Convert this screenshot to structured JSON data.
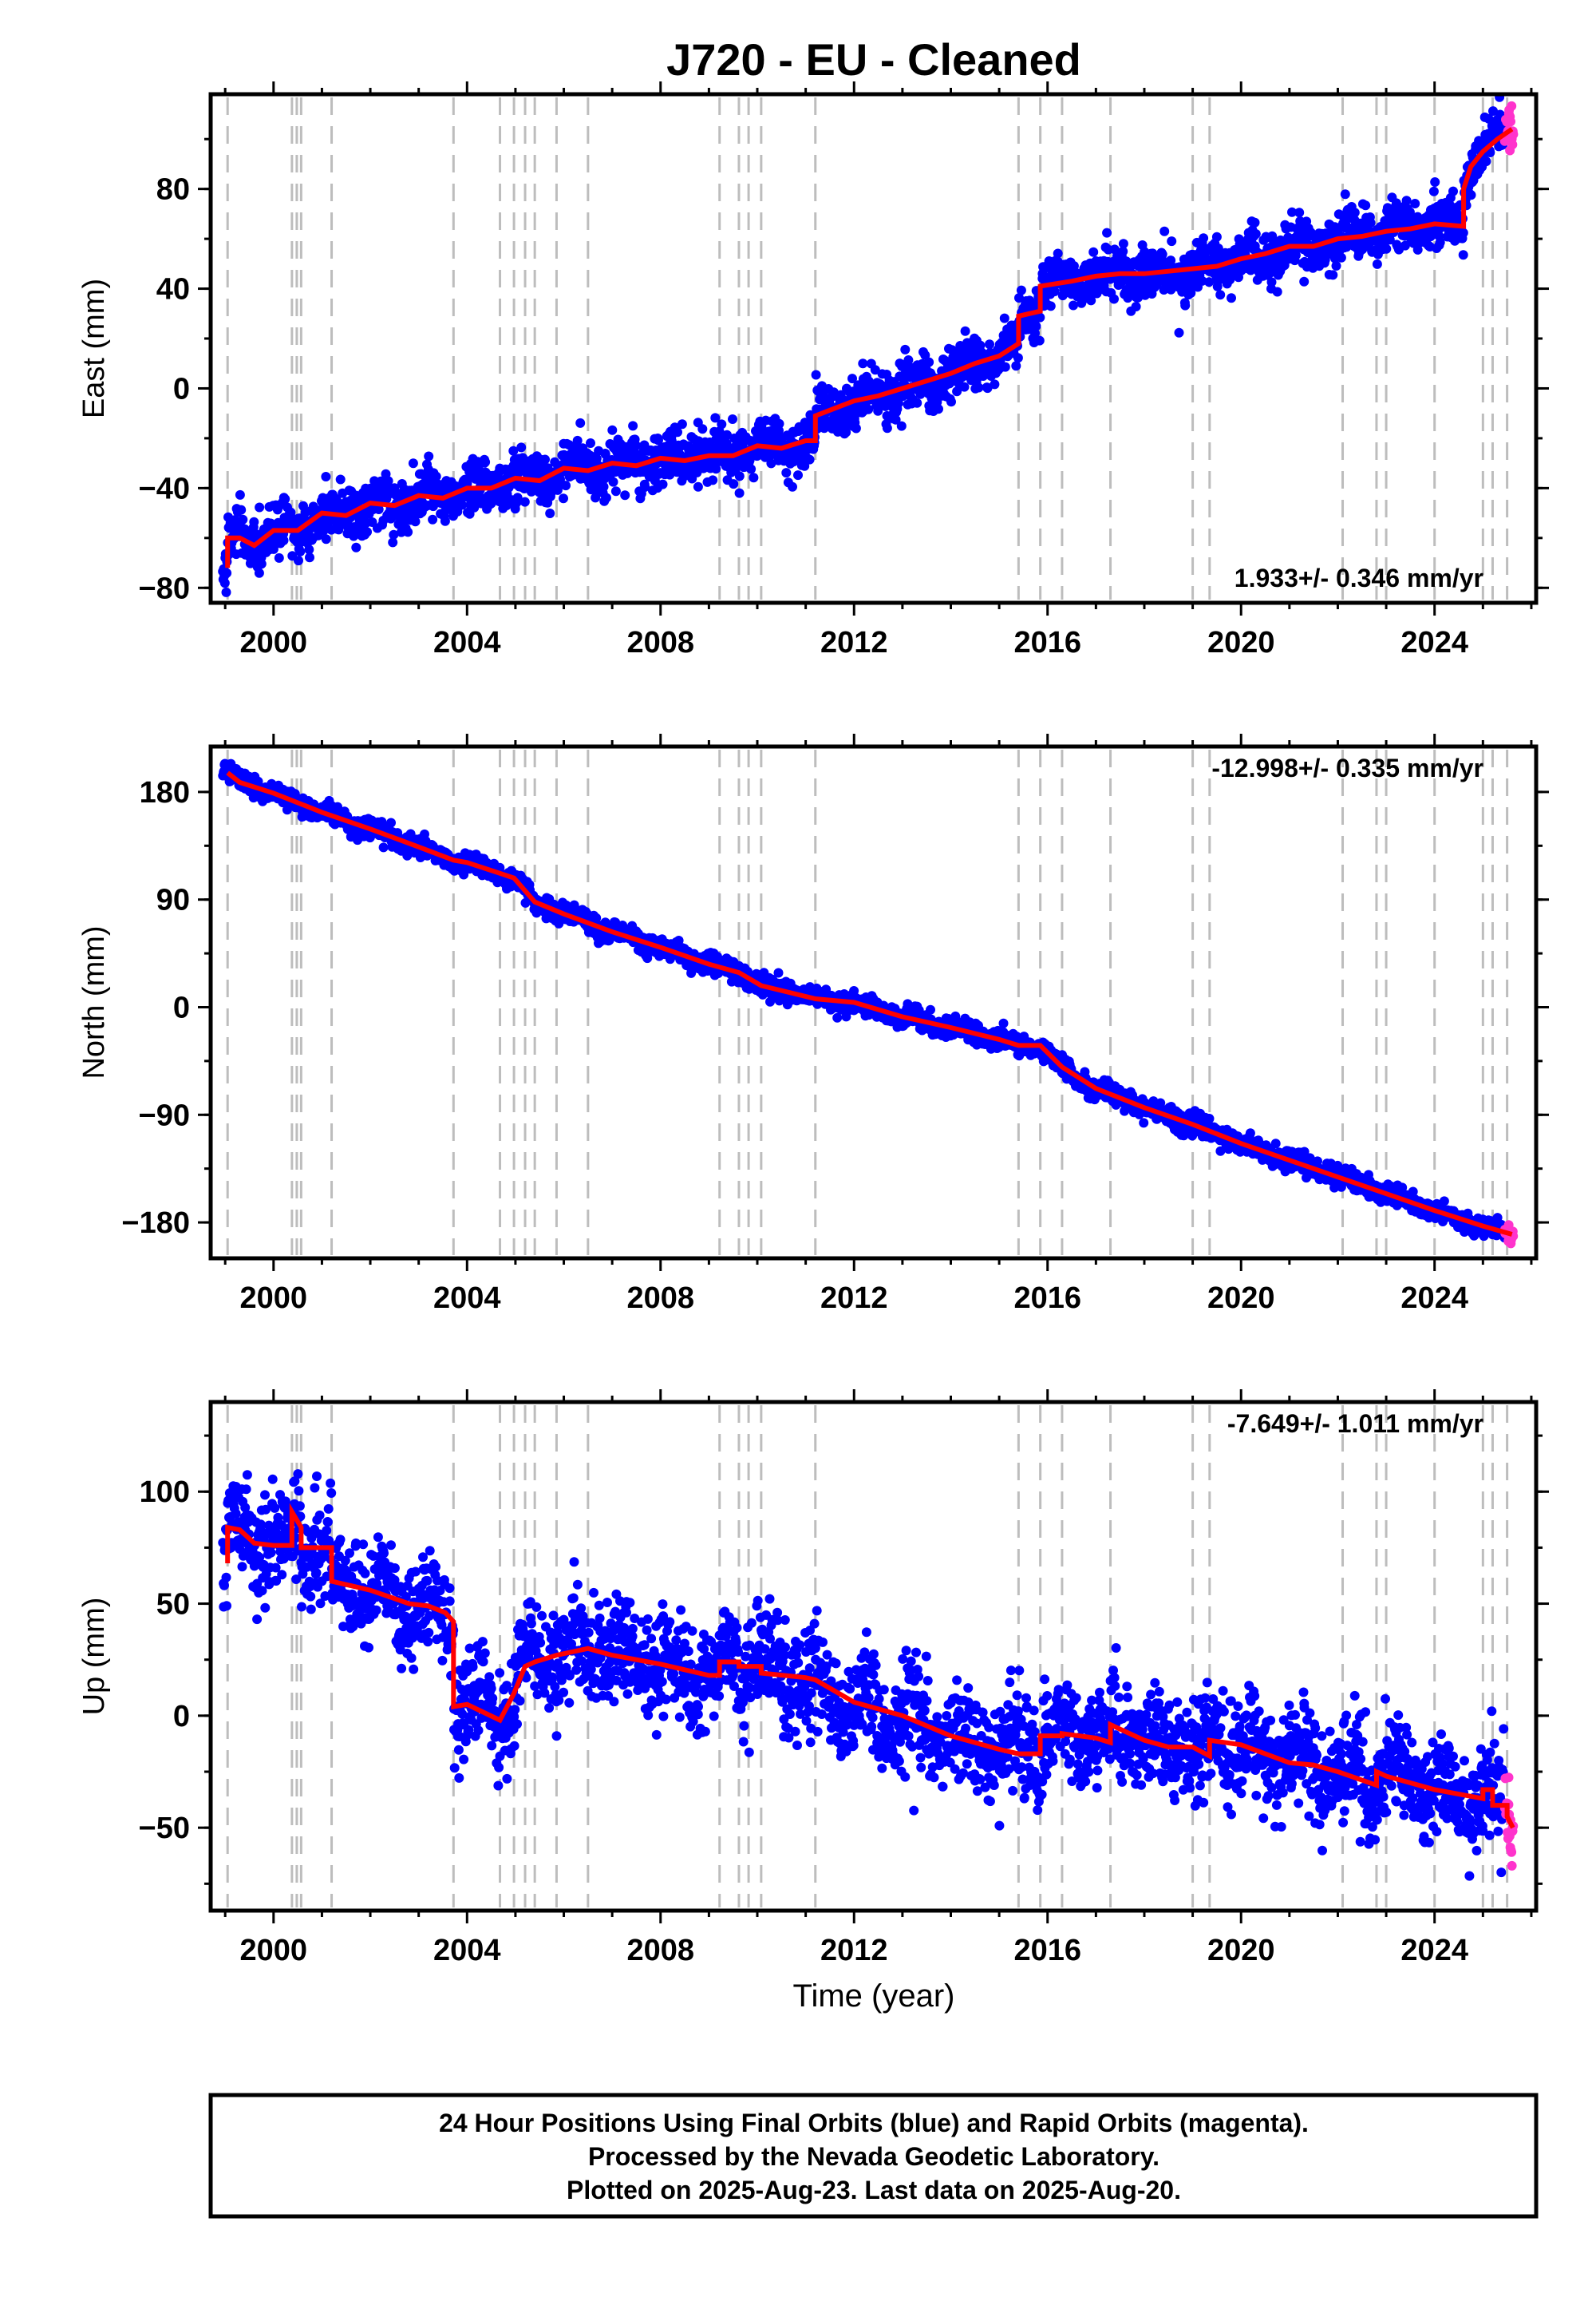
{
  "colors": {
    "final_orbits": "#0000ff",
    "rapid_orbits": "#ff33cc",
    "model": "#ff0000",
    "event_lines": "#bdbdbd",
    "frame": "#000000"
  },
  "chart_data": {
    "title": "J720  - EU - Cleaned",
    "xlabel": "Time (year)",
    "x_ticks": [
      2000,
      2004,
      2008,
      2012,
      2016,
      2020,
      2024
    ],
    "xlim": [
      1998.7,
      2026.1
    ],
    "event_lines_x": [
      1999.05,
      2000.38,
      2000.48,
      2000.57,
      2001.2,
      2003.72,
      2004.68,
      2004.97,
      2005.2,
      2005.4,
      2005.85,
      2006.5,
      2009.22,
      2009.62,
      2009.82,
      2010.08,
      2011.2,
      2015.4,
      2015.85,
      2016.3,
      2017.3,
      2019.0,
      2019.35,
      2022.1,
      2022.8,
      2023.0,
      2024.0,
      2025.0,
      2025.2,
      2025.5
    ],
    "panels": [
      {
        "type": "scatter",
        "id": "east",
        "ylabel": "East (mm)",
        "y_ticks": [
          -80,
          -40,
          0,
          40,
          80
        ],
        "ylim": [
          -86,
          118
        ],
        "rate_label": "1.933+/- 0.346 mm/yr",
        "rate_position": "bottom-right",
        "model_series": {
          "name": "",
          "x": [
            1999.05,
            1999.05,
            1999.3,
            1999.6,
            2000.0,
            2000.5,
            2001.0,
            2001.5,
            2002.0,
            2002.5,
            2003.0,
            2003.5,
            2004.0,
            2004.5,
            2005.0,
            2005.5,
            2006.0,
            2006.5,
            2007.0,
            2007.5,
            2008.0,
            2008.5,
            2009.0,
            2009.5,
            2010.0,
            2010.5,
            2011.0,
            2011.2,
            2011.2,
            2011.6,
            2012.0,
            2012.5,
            2013.0,
            2013.5,
            2014.0,
            2014.5,
            2015.0,
            2015.4,
            2015.4,
            2015.85,
            2015.85,
            2016.5,
            2017.0,
            2017.5,
            2018.0,
            2018.5,
            2019.0,
            2019.5,
            2020.0,
            2020.5,
            2021.0,
            2021.5,
            2022.0,
            2022.5,
            2023.0,
            2023.5,
            2024.0,
            2024.6,
            2024.6,
            2024.75,
            2025.0,
            2025.3,
            2025.6
          ],
          "y": [
            -72,
            -60,
            -60,
            -63,
            -57,
            -57,
            -50,
            -51,
            -46,
            -47,
            -43,
            -44,
            -40,
            -40,
            -36,
            -37,
            -32,
            -33,
            -30,
            -31,
            -28,
            -29,
            -27,
            -27,
            -23,
            -24,
            -21,
            -21,
            -11,
            -8,
            -5,
            -3,
            0,
            3,
            6,
            10,
            13,
            18,
            29,
            31,
            41,
            43,
            45,
            46,
            46,
            47,
            48,
            49,
            52,
            54,
            57,
            57,
            60,
            61,
            63,
            64,
            66,
            65,
            80,
            89,
            95,
            100,
            104
          ]
        },
        "scatter_series": [
          {
            "name": "",
            "color_key": "final_orbits",
            "x_range": [
              1998.95,
              2025.45
            ],
            "y_spread": 5
          },
          {
            "name": "",
            "color_key": "rapid_orbits",
            "x_range": [
              2025.45,
              2025.63
            ],
            "y_spread": 4
          }
        ]
      },
      {
        "type": "scatter",
        "id": "north",
        "ylabel": "North (mm)",
        "y_ticks": [
          -180,
          -90,
          0,
          90,
          180
        ],
        "ylim": [
          -210,
          218
        ],
        "rate_label": "-12.998+/- 0.335 mm/yr",
        "rate_position": "top-right",
        "model_series": {
          "name": "",
          "x": [
            1999.05,
            1999.3,
            2000.0,
            2001.0,
            2002.0,
            2003.0,
            2003.72,
            2004.0,
            2004.68,
            2004.97,
            2005.4,
            2006.0,
            2007.0,
            2008.0,
            2009.0,
            2009.62,
            2010.08,
            2011.2,
            2012.0,
            2013.0,
            2014.0,
            2015.0,
            2015.4,
            2015.85,
            2016.3,
            2017.0,
            2018.0,
            2019.0,
            2020.0,
            2021.0,
            2022.0,
            2023.0,
            2024.0,
            2025.0,
            2025.6
          ],
          "y": [
            196,
            188,
            179,
            163,
            149,
            134,
            123,
            121,
            112,
            108,
            88,
            78,
            63,
            50,
            36,
            29,
            18,
            7,
            4,
            -8,
            -17,
            -27,
            -32,
            -32,
            -50,
            -68,
            -84,
            -98,
            -114,
            -128,
            -142,
            -156,
            -170,
            -183,
            -190
          ]
        },
        "scatter_series": [
          {
            "name": "",
            "color_key": "final_orbits",
            "x_range": [
              1998.95,
              2025.45
            ],
            "y_spread": 4
          },
          {
            "name": "",
            "color_key": "rapid_orbits",
            "x_range": [
              2025.45,
              2025.63
            ],
            "y_spread": 3
          }
        ]
      },
      {
        "type": "scatter",
        "id": "up",
        "ylabel": "Up (mm)",
        "y_ticks": [
          -50,
          0,
          50,
          100
        ],
        "ylim": [
          -87,
          140
        ],
        "rate_label": "-7.649+/- 1.011 mm/yr",
        "rate_position": "top-right",
        "model_series": {
          "name": "",
          "x": [
            1999.05,
            1999.05,
            1999.3,
            1999.6,
            2000.0,
            2000.38,
            2000.38,
            2000.57,
            2000.57,
            2001.2,
            2001.2,
            2001.6,
            2002.0,
            2002.4,
            2002.8,
            2003.2,
            2003.55,
            2003.72,
            2003.72,
            2004.0,
            2004.68,
            2004.68,
            2004.97,
            2004.97,
            2005.2,
            2005.2,
            2005.4,
            2005.4,
            2005.85,
            2005.85,
            2006.5,
            2006.5,
            2007.0,
            2008.0,
            2009.0,
            2009.22,
            2009.22,
            2009.62,
            2009.62,
            2010.08,
            2010.08,
            2011.0,
            2011.2,
            2012.0,
            2013.0,
            2014.0,
            2015.0,
            2015.4,
            2015.4,
            2015.85,
            2015.85,
            2016.3,
            2016.3,
            2017.0,
            2017.3,
            2017.3,
            2018.0,
            2018.5,
            2019.0,
            2019.35,
            2019.35,
            2020.0,
            2021.0,
            2021.5,
            2022.0,
            2022.8,
            2022.8,
            2023.0,
            2023.5,
            2024.0,
            2024.5,
            2025.0,
            2025.0,
            2025.2,
            2025.2,
            2025.5,
            2025.5,
            2025.62
          ],
          "y": [
            68,
            84,
            83,
            77,
            76,
            76,
            91,
            84,
            75,
            75,
            60,
            58,
            56,
            53,
            50,
            49,
            46,
            42,
            4,
            5,
            -2,
            -2,
            10,
            10,
            22,
            22,
            24,
            24,
            27,
            27,
            30,
            30,
            27,
            23,
            18,
            18,
            24,
            24,
            22,
            22,
            19,
            17,
            16,
            6,
            0,
            -9,
            -15,
            -17,
            -17,
            -17,
            -9,
            -9,
            -8,
            -10,
            -12,
            -4,
            -11,
            -14,
            -14,
            -18,
            -11,
            -13,
            -21,
            -22,
            -25,
            -31,
            -25,
            -27,
            -30,
            -33,
            -35,
            -37,
            -33,
            -33,
            -40,
            -40,
            -45,
            -50
          ]
        },
        "scatter_series": [
          {
            "name": "",
            "color_key": "final_orbits",
            "x_range": [
              1998.95,
              2025.45
            ],
            "y_spread": 11
          },
          {
            "name": "",
            "color_key": "rapid_orbits",
            "x_range": [
              2025.45,
              2025.63
            ],
            "y_spread": 8
          }
        ]
      }
    ]
  },
  "footer": {
    "line1": "24 Hour Positions Using Final Orbits (blue) and Rapid Orbits (magenta).",
    "line2": "Processed by the Nevada Geodetic Laboratory.",
    "line3": "Plotted on 2025-Aug-23. Last data on 2025-Aug-20."
  }
}
